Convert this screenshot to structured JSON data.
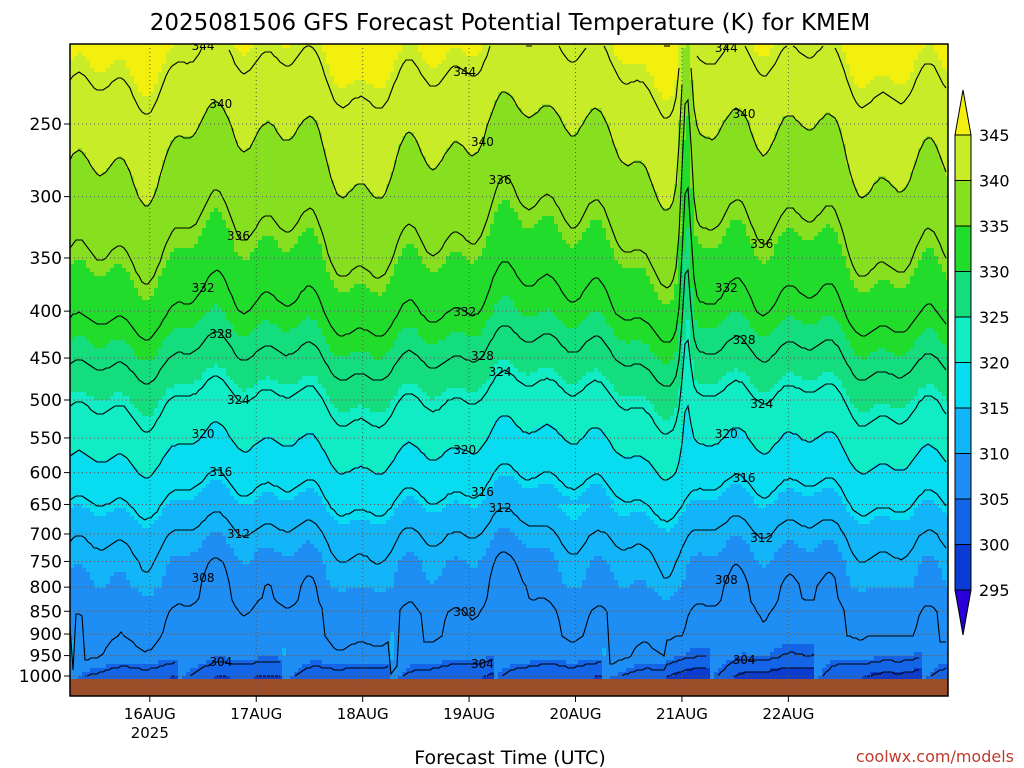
{
  "chart_data": {
    "type": "heatmap",
    "title": "2025081506 GFS Forecast Potential Temperature (K) for KMEM",
    "xlabel": "Forecast Time (UTC)",
    "credit": "coolwx.com/models",
    "x_ticks": [
      "16AUG",
      "17AUG",
      "18AUG",
      "19AUG",
      "20AUG",
      "21AUG",
      "22AUG"
    ],
    "x_year": "2025",
    "x_range_hours": [
      6,
      204
    ],
    "y_axis": {
      "scale": "log-pressure",
      "inverted": true,
      "range": [
        1015,
        200
      ],
      "ticks": [
        250,
        300,
        350,
        400,
        450,
        500,
        550,
        600,
        650,
        700,
        750,
        800,
        850,
        900,
        950,
        1000
      ]
    },
    "grid": true,
    "colorbar": {
      "position": "right",
      "ticks": [
        345,
        340,
        335,
        330,
        325,
        320,
        315,
        310,
        305,
        300,
        295
      ],
      "colors": [
        "#2a00d8",
        "#0a3cd4",
        "#1464e8",
        "#1e8ef5",
        "#12b6f8",
        "#08dcf0",
        "#10ecc4",
        "#14dd7e",
        "#22dc2c",
        "#86e020",
        "#c8ec28",
        "#f4f00e"
      ]
    },
    "contour_interval_K": 4,
    "contour_labels": [
      {
        "value": 344,
        "label": "344"
      },
      {
        "value": 340,
        "label": "340"
      },
      {
        "value": 336,
        "label": "336"
      },
      {
        "value": 332,
        "label": "332"
      },
      {
        "value": 328,
        "label": "328"
      },
      {
        "value": 324,
        "label": "324"
      },
      {
        "value": 320,
        "label": "320"
      },
      {
        "value": 316,
        "label": "316"
      },
      {
        "value": 312,
        "label": "312"
      },
      {
        "value": 308,
        "label": "308"
      },
      {
        "value": 304,
        "label": "304"
      }
    ],
    "theta_profile": {
      "pressure_hPa": [
        1000,
        950,
        900,
        850,
        800,
        750,
        700,
        650,
        600,
        550,
        500,
        450,
        400,
        350,
        300,
        250,
        200
      ],
      "theta_K": [
        300,
        306,
        307.5,
        308,
        309,
        310,
        312,
        315,
        318,
        321,
        324,
        328,
        332,
        335,
        338,
        341,
        346
      ]
    }
  }
}
